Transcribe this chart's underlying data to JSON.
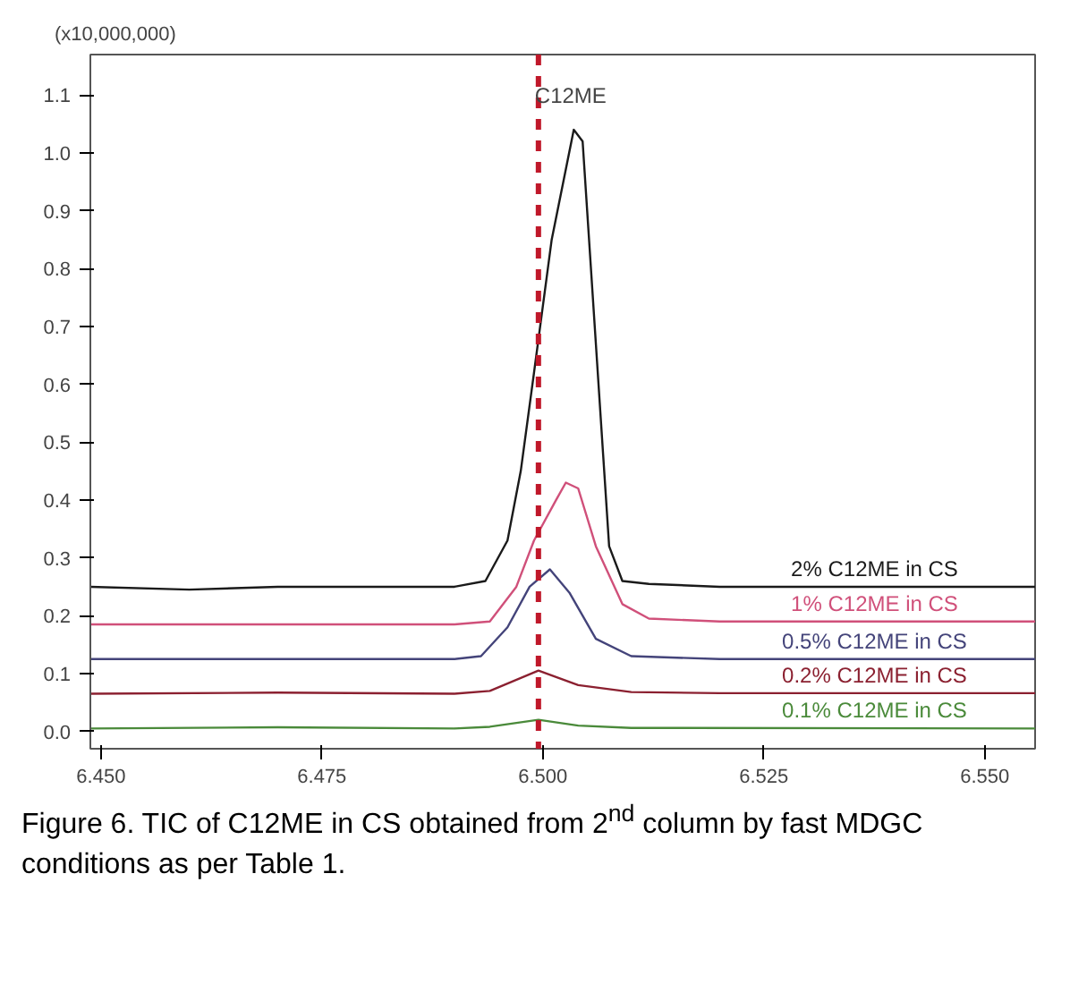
{
  "chart_data": {
    "type": "line",
    "ylabel": "(x10,000,000)",
    "annotations": [
      "Figure 6. TIC of C12ME in CS obtained from 2$^{nd}$ column by fast MDGC conditions as per Table 1."
    ],
    "xlim": [
      6.4488,
      6.5557
    ],
    "ylim": [
      -0.03,
      1.17
    ],
    "xticks": [
      {
        "value": 6.45,
        "label": "6.450"
      },
      {
        "value": 6.475,
        "label": "6.475"
      },
      {
        "value": 6.5,
        "label": "6.500"
      },
      {
        "value": 6.525,
        "label": "6.525"
      },
      {
        "value": 6.55,
        "label": "6.550"
      }
    ],
    "yticks": [
      {
        "value": 0,
        "label": "0.0"
      },
      {
        "value": 0.1,
        "label": "0.1"
      },
      {
        "value": 0.2,
        "label": "0.2"
      },
      {
        "value": 0.3,
        "label": "0.3"
      },
      {
        "value": 0.4,
        "label": "0.4"
      },
      {
        "value": 0.5,
        "label": "0.5"
      },
      {
        "value": 0.6,
        "label": "0.6"
      },
      {
        "value": 0.7,
        "label": "0.7"
      },
      {
        "value": 0.8,
        "label": "0.8"
      },
      {
        "value": 0.9,
        "label": "0.9"
      },
      {
        "value": 1.0,
        "label": "1.0"
      },
      {
        "value": 1.1,
        "label": "1.1"
      }
    ],
    "grid": false,
    "marker": "none",
    "line_style": "solid",
    "ref_lines": [
      {
        "axis": "x",
        "value": 6.4995,
        "label": "C12ME",
        "color": "#c0182a",
        "line_style": "dashed"
      }
    ],
    "series": [
      {
        "name": "2% C12ME in CS",
        "color": "#1a1a1a",
        "x": [
          6.4488,
          6.46,
          6.47,
          6.48,
          6.49,
          6.4935,
          6.496,
          6.4975,
          6.499,
          6.501,
          6.5035,
          6.5045,
          6.5075,
          6.509,
          6.512,
          6.52,
          6.5557
        ],
        "values": [
          0.25,
          0.245,
          0.25,
          0.25,
          0.25,
          0.26,
          0.33,
          0.45,
          0.62,
          0.85,
          1.04,
          1.02,
          0.32,
          0.26,
          0.255,
          0.25,
          0.25
        ]
      },
      {
        "name": "1% C12ME in CS",
        "color": "#d0507a",
        "x": [
          6.4488,
          6.47,
          6.49,
          6.494,
          6.497,
          6.499,
          6.5015,
          6.5026,
          6.504,
          6.506,
          6.509,
          6.512,
          6.52,
          6.5557
        ],
        "values": [
          0.185,
          0.185,
          0.185,
          0.19,
          0.25,
          0.33,
          0.4,
          0.43,
          0.42,
          0.32,
          0.22,
          0.195,
          0.19,
          0.19
        ]
      },
      {
        "name": "0.5% C12ME in CS",
        "color": "#44447a",
        "x": [
          6.4488,
          6.47,
          6.49,
          6.493,
          6.496,
          6.4985,
          6.5008,
          6.503,
          6.506,
          6.51,
          6.52,
          6.5557
        ],
        "values": [
          0.125,
          0.125,
          0.125,
          0.13,
          0.18,
          0.25,
          0.28,
          0.24,
          0.16,
          0.13,
          0.125,
          0.125
        ]
      },
      {
        "name": "0.2% C12ME in CS",
        "color": "#8b2030",
        "x": [
          6.4488,
          6.47,
          6.49,
          6.494,
          6.4995,
          6.504,
          6.51,
          6.52,
          6.5557
        ],
        "values": [
          0.065,
          0.067,
          0.065,
          0.07,
          0.105,
          0.08,
          0.068,
          0.066,
          0.066
        ]
      },
      {
        "name": "0.1% C12ME in CS",
        "color": "#4a8a3a",
        "x": [
          6.4488,
          6.47,
          6.49,
          6.494,
          6.4995,
          6.504,
          6.51,
          6.5557
        ],
        "values": [
          0.005,
          0.007,
          0.005,
          0.008,
          0.02,
          0.01,
          0.006,
          0.005
        ]
      }
    ]
  }
}
